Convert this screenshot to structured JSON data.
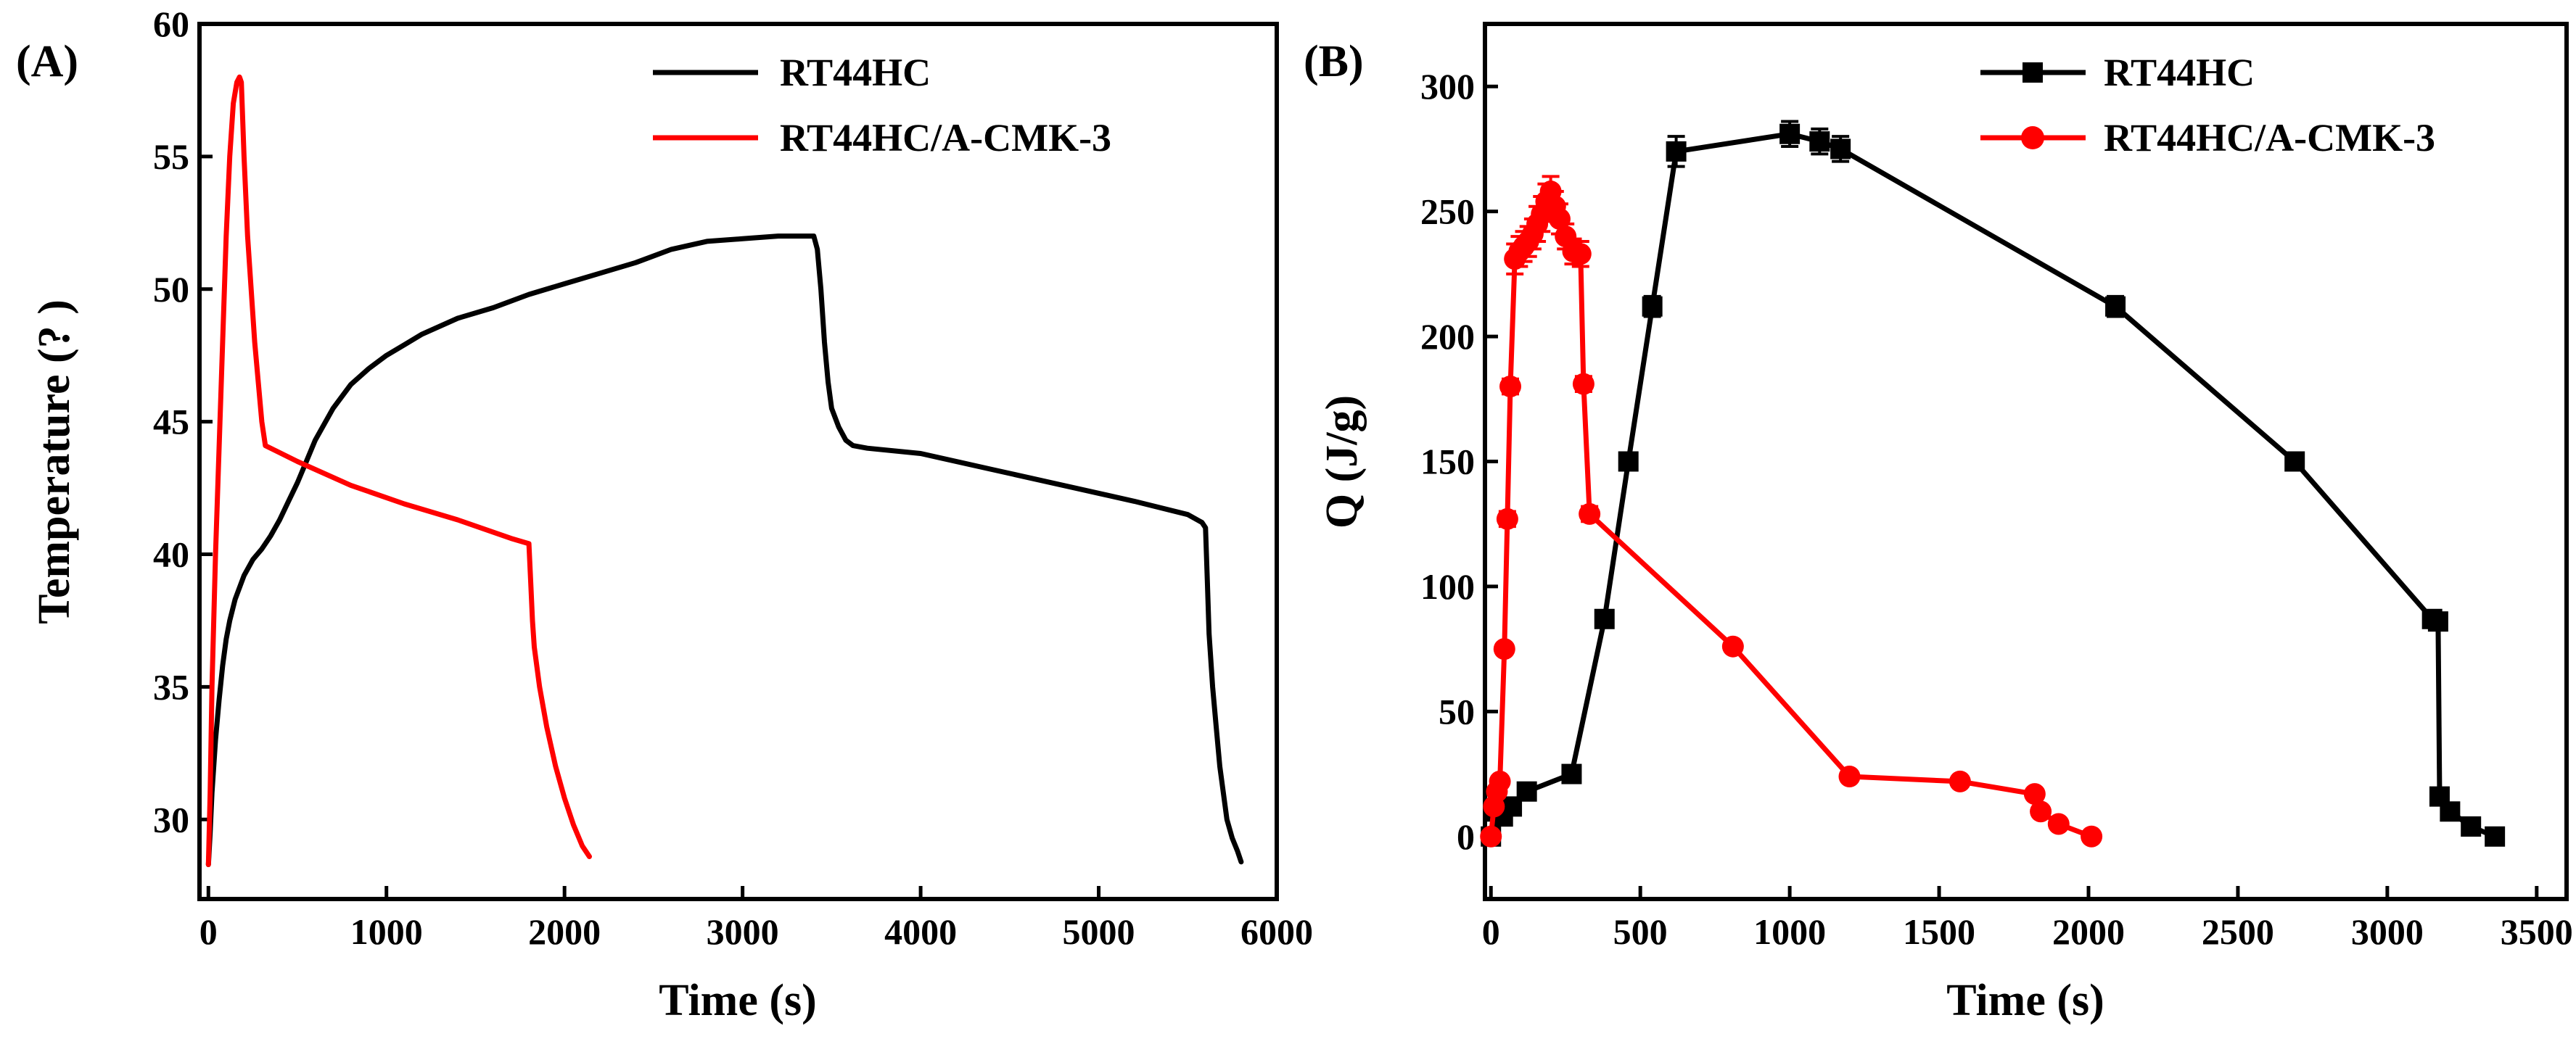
{
  "chart_data": [
    {
      "panel_label": "(A)",
      "type": "line",
      "xlabel": "Time (s)",
      "ylabel": "Temperature (? )",
      "xlim": [
        -50,
        6000
      ],
      "ylim": [
        27,
        60
      ],
      "xticks": [
        0,
        1000,
        2000,
        3000,
        4000,
        5000,
        6000
      ],
      "yticks": [
        30,
        35,
        40,
        45,
        50,
        55,
        60
      ],
      "xtick_labels": [
        "0",
        "1000",
        "2000",
        "3000",
        "4000",
        "5000",
        "6000"
      ],
      "ytick_labels": [
        "30",
        "35",
        "40",
        "45",
        "50",
        "55",
        "60"
      ],
      "legend_position": "top-right",
      "series": [
        {
          "name": "RT44HC",
          "color": "#000000",
          "marker": "none",
          "x": [
            0,
            10,
            20,
            40,
            60,
            80,
            100,
            120,
            150,
            200,
            250,
            300,
            350,
            400,
            450,
            500,
            550,
            600,
            700,
            800,
            900,
            1000,
            1100,
            1200,
            1400,
            1600,
            1800,
            2000,
            2200,
            2400,
            2600,
            2800,
            3000,
            3200,
            3400,
            3420,
            3440,
            3460,
            3480,
            3500,
            3540,
            3580,
            3620,
            3700,
            4000,
            4400,
            4800,
            5200,
            5500,
            5580,
            5600,
            5610,
            5620,
            5640,
            5660,
            5680,
            5700,
            5720,
            5750,
            5780,
            5800
          ],
          "y": [
            28.3,
            29.5,
            31.0,
            33.0,
            34.5,
            35.8,
            36.8,
            37.5,
            38.3,
            39.2,
            39.8,
            40.2,
            40.7,
            41.3,
            42.0,
            42.7,
            43.5,
            44.3,
            45.5,
            46.4,
            47.0,
            47.5,
            47.9,
            48.3,
            48.9,
            49.3,
            49.8,
            50.2,
            50.6,
            51.0,
            51.5,
            51.8,
            51.9,
            52.0,
            52.0,
            51.5,
            50.0,
            48.0,
            46.5,
            45.5,
            44.8,
            44.3,
            44.1,
            44.0,
            43.8,
            43.2,
            42.6,
            42.0,
            41.5,
            41.2,
            41.0,
            39.0,
            37.0,
            35.0,
            33.5,
            32.0,
            31.0,
            30.0,
            29.3,
            28.8,
            28.4
          ]
        },
        {
          "name": "RT44HC/A-CMK-3",
          "color": "#ff0000",
          "marker": "none",
          "x": [
            0,
            10,
            20,
            40,
            60,
            80,
            100,
            120,
            140,
            160,
            175,
            185,
            200,
            220,
            240,
            260,
            280,
            300,
            320,
            500,
            800,
            1100,
            1400,
            1700,
            1800,
            1810,
            1820,
            1830,
            1860,
            1900,
            1950,
            2000,
            2050,
            2100,
            2140
          ],
          "y": [
            28.3,
            31.0,
            35.0,
            40.0,
            44.0,
            48.0,
            52.0,
            55.0,
            57.0,
            57.8,
            58.0,
            57.8,
            55.0,
            52.0,
            50.0,
            48.0,
            46.5,
            45.0,
            44.1,
            43.5,
            42.6,
            41.9,
            41.3,
            40.6,
            40.4,
            39.0,
            37.5,
            36.5,
            35.0,
            33.5,
            32.0,
            30.8,
            29.8,
            29.0,
            28.6
          ]
        }
      ]
    },
    {
      "panel_label": "(B)",
      "type": "line",
      "xlabel": "Time (s)",
      "ylabel": "Q (J/g)",
      "xlim": [
        -20,
        3600
      ],
      "ylim": [
        -25,
        325
      ],
      "xticks": [
        0,
        500,
        1000,
        1500,
        2000,
        2500,
        3000,
        3500
      ],
      "yticks": [
        0,
        50,
        100,
        150,
        200,
        250,
        300
      ],
      "xtick_labels": [
        "0",
        "500",
        "1000",
        "1500",
        "2000",
        "2500",
        "3000",
        "3500"
      ],
      "ytick_labels": [
        "0",
        "50",
        "100",
        "150",
        "200",
        "250",
        "300"
      ],
      "legend_position": "top-right",
      "series": [
        {
          "name": "RT44HC",
          "color": "#000000",
          "marker": "square",
          "x": [
            0,
            15,
            40,
            70,
            120,
            270,
            380,
            460,
            540,
            620,
            1000,
            1100,
            1170,
            2090,
            2690,
            3150,
            3170,
            3175,
            3210,
            3280,
            3360
          ],
          "y": [
            0,
            10,
            8,
            12,
            18,
            25,
            87,
            150,
            212,
            274,
            281,
            278,
            275,
            212,
            150,
            87,
            86,
            16,
            10,
            4,
            0
          ],
          "error": [
            0,
            2,
            2,
            2,
            2,
            2,
            3,
            3,
            4,
            6,
            5,
            5,
            5,
            4,
            3,
            3,
            3,
            2,
            2,
            2,
            1
          ]
        },
        {
          "name": "RT44HC/A-CMK-3",
          "color": "#ff0000",
          "marker": "circle",
          "x": [
            0,
            10,
            20,
            30,
            45,
            55,
            65,
            80,
            95,
            110,
            125,
            140,
            155,
            170,
            185,
            200,
            215,
            230,
            250,
            275,
            300,
            310,
            330,
            810,
            1200,
            1570,
            1820,
            1840,
            1900,
            2010
          ],
          "y": [
            0,
            12,
            18,
            22,
            75,
            127,
            180,
            231,
            234,
            236,
            238,
            241,
            245,
            249,
            254,
            258,
            252,
            247,
            240,
            234,
            233,
            181,
            129,
            76,
            24,
            22,
            17,
            10,
            5,
            0
          ],
          "error": [
            0,
            1,
            2,
            2,
            2,
            3,
            3,
            6,
            6,
            6,
            6,
            6,
            7,
            7,
            7,
            6,
            6,
            6,
            5,
            5,
            5,
            3,
            3,
            2,
            2,
            2,
            2,
            1,
            1,
            1
          ]
        }
      ]
    }
  ]
}
